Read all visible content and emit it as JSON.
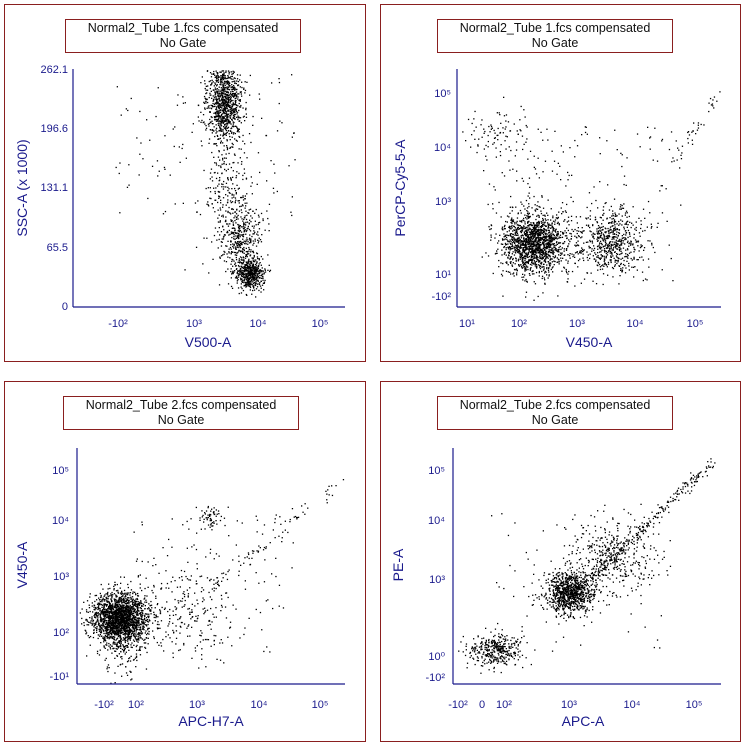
{
  "panels": [
    {
      "title_line1": "Normal2_Tube 1.fcs compensated",
      "title_line2": "No Gate",
      "x_label": "V500-A",
      "y_label": "SSC-A (x 1000)",
      "x_ticks": [
        "-10²",
        "10³",
        "10⁴",
        "10⁵"
      ],
      "y_ticks": [
        "262.1",
        "196.6",
        "131.1",
        "65.5",
        "0"
      ]
    },
    {
      "title_line1": "Normal2_Tube 1.fcs compensated",
      "title_line2": "No Gate",
      "x_label": "V450-A",
      "y_label": "PerCP-Cy5-5-A",
      "x_ticks": [
        "10¹",
        "10²",
        "10³",
        "10⁴",
        "10⁵"
      ],
      "y_ticks": [
        "10⁵",
        "10⁴",
        "10³",
        "10¹",
        "-10²"
      ]
    },
    {
      "title_line1": "Normal2_Tube 2.fcs compensated",
      "title_line2": "No Gate",
      "x_label": "APC-H7-A",
      "y_label": "V450-A",
      "x_ticks": [
        "-10²",
        "10²",
        "10³",
        "10⁴",
        "10⁵"
      ],
      "y_ticks": [
        "10⁵",
        "10⁴",
        "10³",
        "10²",
        "-10¹"
      ]
    },
    {
      "title_line1": "Normal2_Tube 2.fcs compensated",
      "title_line2": "No Gate",
      "x_label": "APC-A",
      "y_label": "PE-A",
      "x_ticks": [
        "-10²",
        "0",
        "10²",
        "10³",
        "10⁴",
        "10⁵"
      ],
      "y_ticks": [
        "10⁵",
        "10⁴",
        "10³",
        "10⁰",
        "-10²"
      ]
    }
  ],
  "colors": {
    "border": "#8a1f1f",
    "axis": "#1a1a8c",
    "dots": "#000000"
  },
  "chart_data": [
    {
      "type": "scatter",
      "title": "Normal2_Tube 1.fcs compensated / No Gate",
      "xlabel": "V500-A",
      "ylabel": "SSC-A (x 1000)",
      "x_scale": "biexponential",
      "x_ticks": [
        "-10²",
        "10³",
        "10⁴",
        "10⁵"
      ],
      "ylim": [
        0,
        262.1
      ],
      "y_ticks": [
        0,
        65.5,
        131.1,
        196.6,
        262.1
      ],
      "clusters": [
        {
          "x": 2500,
          "y": 230,
          "density": "high"
        },
        {
          "x": 3500,
          "y": 80,
          "density": "medium"
        },
        {
          "x": 6000,
          "y": 30,
          "density": "high"
        }
      ]
    },
    {
      "type": "scatter",
      "title": "Normal2_Tube 1.fcs compensated / No Gate",
      "xlabel": "V450-A",
      "ylabel": "PerCP-Cy5-5-A",
      "x_scale": "log",
      "y_scale": "biexponential",
      "x_ticks": [
        "10¹",
        "10²",
        "10³",
        "10⁴",
        "10⁵"
      ],
      "y_ticks": [
        "-10²",
        "10¹",
        "10³",
        "10⁴",
        "10⁵"
      ],
      "clusters": [
        {
          "x": 200,
          "y": 300,
          "density": "high"
        },
        {
          "x": 4000,
          "y": 300,
          "density": "medium"
        },
        {
          "x": 200,
          "y": 20000,
          "density": "low"
        }
      ]
    },
    {
      "type": "scatter",
      "title": "Normal2_Tube 2.fcs compensated / No Gate",
      "xlabel": "APC-H7-A",
      "ylabel": "V450-A",
      "x_scale": "biexponential",
      "y_scale": "biexponential",
      "x_ticks": [
        "-10²",
        "10²",
        "10³",
        "10⁴",
        "10⁵"
      ],
      "y_ticks": [
        "-10¹",
        "10²",
        "10³",
        "10⁴",
        "10⁵"
      ],
      "clusters": [
        {
          "x": 50,
          "y": 150,
          "density": "very high"
        },
        {
          "x": 2000,
          "y": 12000,
          "density": "low"
        }
      ]
    },
    {
      "type": "scatter",
      "title": "Normal2_Tube 2.fcs compensated / No Gate",
      "xlabel": "APC-A",
      "ylabel": "PE-A",
      "x_scale": "biexponential",
      "y_scale": "biexponential",
      "x_ticks": [
        "-10²",
        "0",
        "10²",
        "10³",
        "10⁴",
        "10⁵"
      ],
      "y_ticks": [
        "-10²",
        "10⁰",
        "10³",
        "10⁴",
        "10⁵"
      ],
      "clusters": [
        {
          "x": 50,
          "y": 1,
          "density": "medium"
        },
        {
          "x": 1000,
          "y": 700,
          "density": "high"
        },
        {
          "x": 6000,
          "y": 6000,
          "density": "diagonal streak"
        }
      ]
    }
  ]
}
